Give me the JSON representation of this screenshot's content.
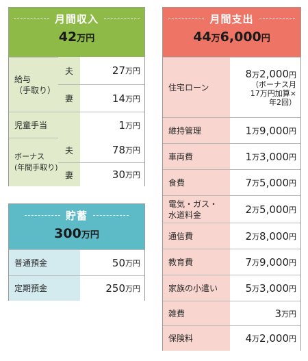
{
  "income": {
    "title": "月間収入",
    "total_num": "42",
    "total_unit": "万円",
    "rows": {
      "kyuyo_label": "給与\n（手取り）",
      "kyuyo_husband_label": "夫",
      "kyuyo_husband_num": "27",
      "kyuyo_wife_label": "妻",
      "kyuyo_wife_num": "14",
      "jido_label": "児童手当",
      "jido_num": "1",
      "bonus_label": "ボーナス\n(年間手取り)",
      "bonus_husband_label": "夫",
      "bonus_husband_num": "78",
      "bonus_wife_label": "妻",
      "bonus_wife_num": "30"
    },
    "unit": "万円"
  },
  "savings": {
    "title": "貯蓄",
    "total_num": "300",
    "total_unit": "万円",
    "rows": [
      {
        "label": "普通預金",
        "num": "50"
      },
      {
        "label": "定期預金",
        "num": "250"
      }
    ],
    "unit": "万円"
  },
  "expenses": {
    "title": "月間支出",
    "total_a": "44",
    "total_man": "万",
    "total_b": "6,000",
    "total_yen": "円",
    "man": "万",
    "yen": "円",
    "housing": {
      "label": "住宅ローン",
      "a": "8",
      "b": "2,000",
      "note1": "（ボーナス月",
      "note2": "17万円加算×",
      "note3": "年2回）"
    },
    "rows": [
      {
        "label": "維持管理",
        "a": "1",
        "b": "9,000"
      },
      {
        "label": "車両費",
        "a": "1",
        "b": "3,000"
      },
      {
        "label": "食費",
        "a": "7",
        "b": "5,000"
      },
      {
        "label": "電気・ガス・\n水道料金",
        "a": "2",
        "b": "5,000"
      },
      {
        "label": "通信費",
        "a": "2",
        "b": "8,000"
      },
      {
        "label": "教育費",
        "a": "7",
        "b": "9,000"
      },
      {
        "label": "家族の小遣い",
        "a": "5",
        "b": "3,000"
      },
      {
        "label": "雑費",
        "a": "3",
        "b": ""
      },
      {
        "label": "保険料",
        "a": "4",
        "b": "2,000"
      }
    ],
    "unit_manyen": "万円"
  }
}
